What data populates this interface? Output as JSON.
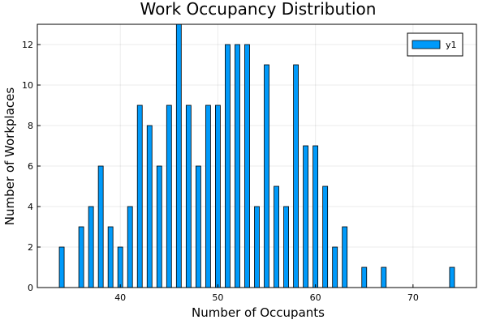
{
  "chart_data": {
    "type": "bar",
    "title": "Work Occupancy Distribution",
    "xlabel": "Number of Occupants",
    "ylabel": "Number of Workplaces",
    "x": [
      34,
      36,
      37,
      38,
      39,
      40,
      41,
      42,
      43,
      44,
      45,
      46,
      47,
      48,
      49,
      50,
      51,
      52,
      53,
      54,
      55,
      56,
      57,
      58,
      59,
      60,
      61,
      62,
      63,
      65,
      67,
      74
    ],
    "series": [
      {
        "name": "y1",
        "values": [
          2,
          3,
          4,
          6,
          3,
          2,
          4,
          9,
          8,
          6,
          9,
          13,
          9,
          6,
          9,
          9,
          12,
          12,
          12,
          4,
          11,
          5,
          4,
          11,
          7,
          7,
          5,
          2,
          3,
          1,
          1,
          1
        ]
      }
    ],
    "xlim": [
      31.5,
      76.5
    ],
    "ylim": [
      0,
      13
    ],
    "xticks": [
      40,
      50,
      60,
      70
    ],
    "yticks": [
      0,
      2,
      4,
      6,
      8,
      10,
      12
    ],
    "grid": true,
    "legend_position": "top-right",
    "bar_color": "#009AFA"
  }
}
